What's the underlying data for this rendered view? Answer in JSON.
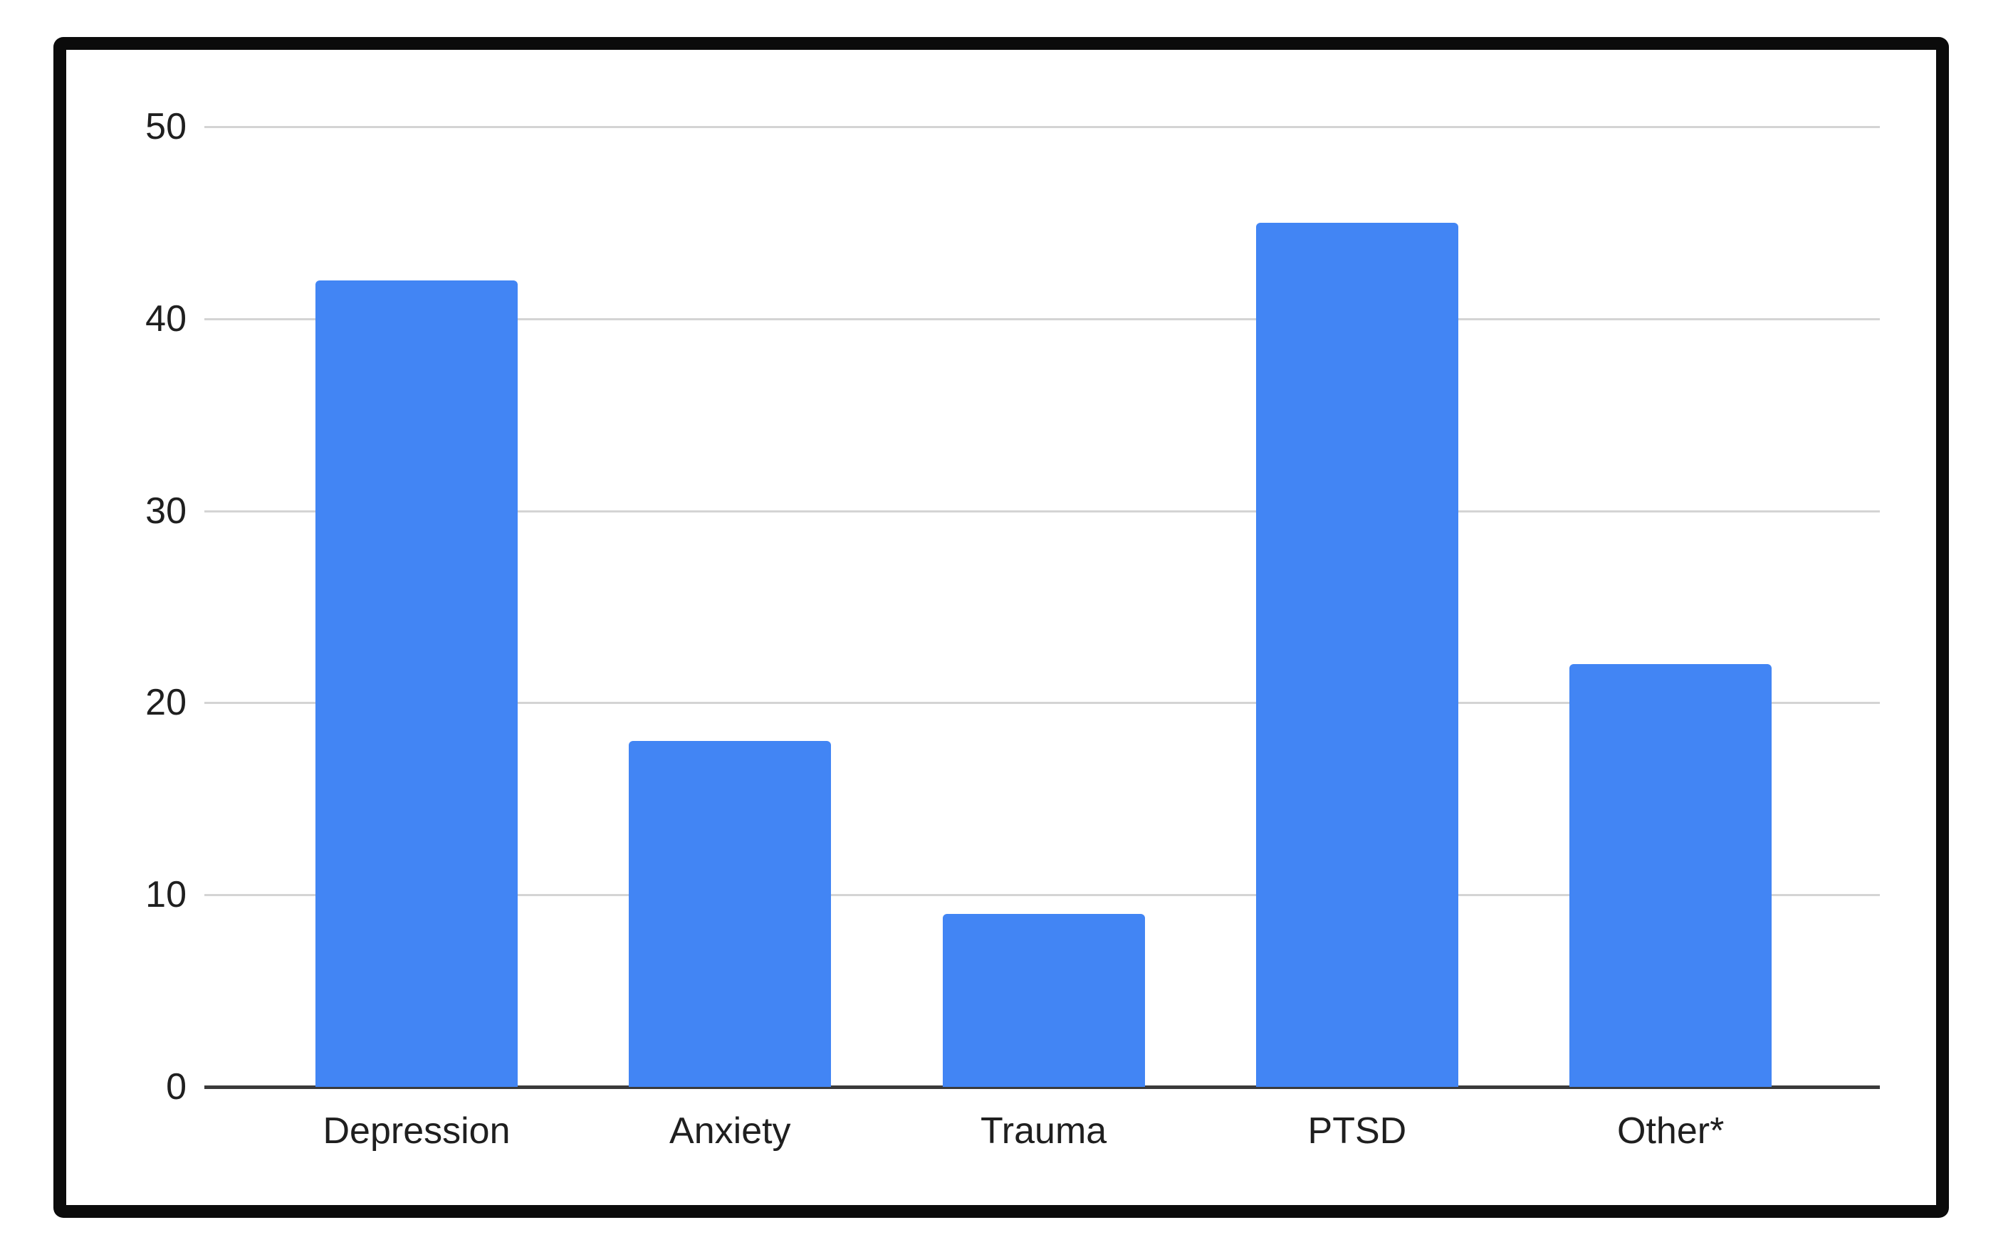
{
  "chart_data": {
    "type": "bar",
    "categories": [
      "Depression",
      "Anxiety",
      "Trauma",
      "PTSD",
      "Other*"
    ],
    "values": [
      42,
      18,
      9,
      45,
      22
    ],
    "title": "",
    "xlabel": "",
    "ylabel": "",
    "ylim": [
      0,
      50
    ],
    "yticks": [
      0,
      10,
      20,
      30,
      40,
      50
    ],
    "grid": true,
    "legend": false
  },
  "colors": {
    "bar": "#4285f4",
    "gridline": "#d4d4d4",
    "axis_line": "#3a3a3a",
    "text": "#1f1f1f",
    "frame": "#0b0b0b",
    "background": "#ffffff"
  }
}
